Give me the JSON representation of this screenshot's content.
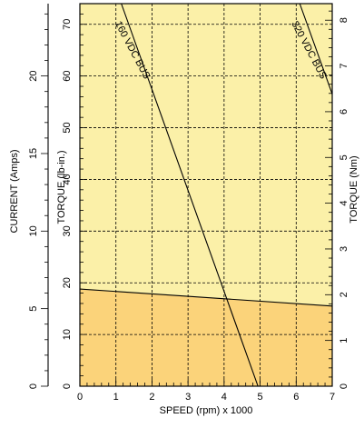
{
  "chart_data": {
    "type": "line",
    "xlabel": "SPEED (rpm) x 1000",
    "ylabel_torque_lbin": "TORQUE (lb-in.)",
    "ylabel_current": "CURRENT (Amps)",
    "ylabel_torque_nm": "TORQUE (Nm)",
    "xlim": [
      0,
      7
    ],
    "ylim": [
      0,
      74
    ],
    "x_ticks": [
      0,
      1,
      2,
      3,
      4,
      5,
      6,
      7
    ],
    "torque_lbin_ticks": [
      0,
      10,
      20,
      30,
      40,
      50,
      60,
      70
    ],
    "current_ticks": [
      0,
      5,
      10,
      15,
      20
    ],
    "current_per_torque_lbin": 0.3333,
    "torque_nm_ticks": [
      0,
      1,
      2,
      3,
      4,
      5,
      6,
      7,
      8
    ],
    "nm_per_lbin": 0.113,
    "grid": true,
    "series": [
      {
        "name": "160 VDC BUS",
        "x": [
          1.15,
          4.94
        ],
        "y": [
          74,
          0
        ],
        "label_position": [
          1.45,
          65
        ],
        "label_angle": 62
      },
      {
        "name": "320 VDC BUS",
        "x": [
          6.1,
          7.0
        ],
        "y": [
          74,
          56.5
        ],
        "label_position": [
          6.35,
          65
        ],
        "label_angle": 62
      },
      {
        "x": [
          0,
          7
        ],
        "y": [
          18.8,
          15.5
        ]
      }
    ],
    "regions": [
      {
        "kind": "continuous",
        "upper_boundary_x": [
          0,
          7
        ],
        "upper_boundary_y": [
          18.8,
          15.5
        ],
        "color": "#fbd37a"
      },
      {
        "kind": "intermittent",
        "color": "#fbf0a8"
      }
    ]
  }
}
